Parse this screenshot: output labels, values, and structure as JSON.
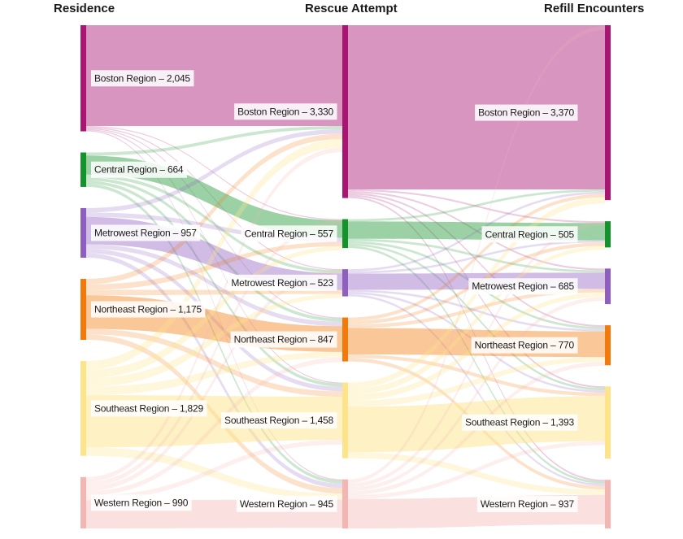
{
  "columns": [
    {
      "title": "Residence"
    },
    {
      "title": "Rescue Attempt"
    },
    {
      "title": "Refill Encounters"
    }
  ],
  "regions": [
    {
      "key": "boston",
      "color": "#a81573"
    },
    {
      "key": "central",
      "color": "#14922b"
    },
    {
      "key": "metrowest",
      "color": "#8f5fc0"
    },
    {
      "key": "northeast",
      "color": "#f27a0c"
    },
    {
      "key": "southeast",
      "color": "#fde48a"
    },
    {
      "key": "western",
      "color": "#f3b6b3"
    }
  ],
  "nodes": {
    "residence": [
      {
        "key": "boston",
        "label": "Boston Region – 2,045",
        "value": 2045
      },
      {
        "key": "central",
        "label": "Central Region – 664",
        "value": 664
      },
      {
        "key": "metrowest",
        "label": "Metrowest Region – 957",
        "value": 957
      },
      {
        "key": "northeast",
        "label": "Northeast Region – 1,175",
        "value": 1175
      },
      {
        "key": "southeast",
        "label": "Southeast Region – 1,829",
        "value": 1829
      },
      {
        "key": "western",
        "label": "Western Region – 990",
        "value": 990
      }
    ],
    "rescue": [
      {
        "key": "boston",
        "label": "Boston Region – 3,330",
        "value": 3330
      },
      {
        "key": "central",
        "label": "Central Region – 557",
        "value": 557
      },
      {
        "key": "metrowest",
        "label": "Metrowest Region – 523",
        "value": 523
      },
      {
        "key": "northeast",
        "label": "Northeast Region – 847",
        "value": 847
      },
      {
        "key": "southeast",
        "label": "Southeast Region – 1,458",
        "value": 1458
      },
      {
        "key": "western",
        "label": "Western Region – 945",
        "value": 945
      }
    ],
    "refill": [
      {
        "key": "boston",
        "label": "Boston Region – 3,370",
        "value": 3370
      },
      {
        "key": "central",
        "label": "Central Region – 505",
        "value": 505
      },
      {
        "key": "metrowest",
        "label": "Metrowest Region – 685",
        "value": 685
      },
      {
        "key": "northeast",
        "label": "Northeast Region – 770",
        "value": 770
      },
      {
        "key": "southeast",
        "label": "Southeast Region – 1,393",
        "value": 1393
      },
      {
        "key": "western",
        "label": "Western Region – 937",
        "value": 937
      }
    ]
  }
}
